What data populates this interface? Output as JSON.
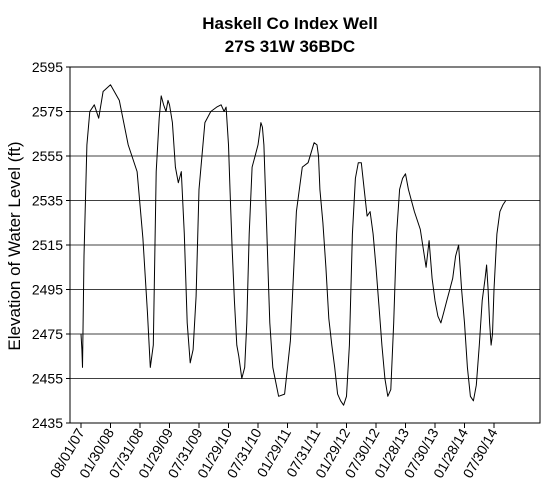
{
  "chart_data": {
    "type": "line",
    "title": "Haskell Co Index Well",
    "subtitle": "27S 31W 36BDC",
    "xlabel": "",
    "ylabel": "Elevation of Water Level (ft)",
    "ylim": [
      2435,
      2595
    ],
    "yticks": [
      2435,
      2455,
      2475,
      2495,
      2515,
      2535,
      2555,
      2575,
      2595
    ],
    "xtick_labels": [
      "08/01/07",
      "01/30/08",
      "07/31/08",
      "01/29/09",
      "07/31/09",
      "01/29/10",
      "07/31/10",
      "01/29/11",
      "07/31/11",
      "01/29/12",
      "07/30/12",
      "01/28/13",
      "07/30/13",
      "01/28/14",
      "07/30/14"
    ],
    "grid": "horizontal",
    "legend": "none",
    "line_color": "#000000",
    "series": [
      {
        "x": [
          0,
          0.03,
          0.05,
          0.1,
          0.2,
          0.3,
          0.45,
          0.6,
          0.75,
          1.0,
          1.3,
          1.6,
          1.9,
          2.1,
          2.25,
          2.35,
          2.45,
          2.55,
          2.65,
          2.72,
          2.8,
          2.88,
          2.95,
          3.0,
          3.1,
          3.2,
          3.3,
          3.4,
          3.5,
          3.6,
          3.7,
          3.8,
          3.9,
          4.0,
          4.2,
          4.4,
          4.6,
          4.75,
          4.85,
          4.92,
          5.0,
          5.05,
          5.12,
          5.2,
          5.28,
          5.35,
          5.45,
          5.55,
          5.62,
          5.7,
          5.8,
          5.9,
          6.0,
          6.05,
          6.1,
          6.15,
          6.2,
          6.25,
          6.3,
          6.35,
          6.4,
          6.5,
          6.7,
          6.9,
          7.1,
          7.3,
          7.5,
          7.7,
          7.9,
          8.0,
          8.05,
          8.1,
          8.2,
          8.3,
          8.4,
          8.5,
          8.6,
          8.7,
          8.8,
          8.9,
          9.0,
          9.1,
          9.2,
          9.3,
          9.4,
          9.5,
          9.6,
          9.7,
          9.8,
          9.9,
          10.0,
          10.1,
          10.2,
          10.3,
          10.4,
          10.5,
          10.6,
          10.7,
          10.8,
          10.9,
          11.0,
          11.1,
          11.3,
          11.5,
          11.7,
          11.8,
          11.9,
          12.0,
          12.1,
          12.2,
          12.3,
          12.4,
          12.5,
          12.6,
          12.7,
          12.8,
          12.9,
          13.0,
          13.1,
          13.2,
          13.3,
          13.4,
          13.5,
          13.6,
          13.7,
          13.75,
          13.8,
          13.85,
          13.9,
          13.95,
          14.0,
          14.1,
          14.2,
          14.3,
          14.4
        ],
        "values": [
          2475,
          2468,
          2460,
          2510,
          2560,
          2575,
          2578,
          2572,
          2584,
          2587,
          2580,
          2560,
          2548,
          2518,
          2485,
          2460,
          2470,
          2548,
          2572,
          2582,
          2578,
          2575,
          2580,
          2578,
          2570,
          2550,
          2543,
          2548,
          2520,
          2480,
          2462,
          2468,
          2492,
          2540,
          2570,
          2575,
          2577,
          2578,
          2575,
          2577,
          2560,
          2540,
          2515,
          2490,
          2470,
          2465,
          2455,
          2460,
          2480,
          2520,
          2550,
          2555,
          2560,
          2565,
          2570,
          2568,
          2560,
          2540,
          2520,
          2500,
          2480,
          2460,
          2447,
          2448,
          2472,
          2530,
          2550,
          2552,
          2561,
          2560,
          2555,
          2540,
          2525,
          2505,
          2482,
          2470,
          2460,
          2448,
          2445,
          2443,
          2447,
          2470,
          2520,
          2545,
          2552,
          2552,
          2540,
          2528,
          2530,
          2520,
          2505,
          2488,
          2470,
          2455,
          2447,
          2450,
          2480,
          2520,
          2540,
          2545,
          2547,
          2540,
          2530,
          2522,
          2505,
          2517,
          2500,
          2490,
          2483,
          2480,
          2485,
          2490,
          2495,
          2500,
          2510,
          2515,
          2495,
          2480,
          2460,
          2447,
          2445,
          2452,
          2470,
          2490,
          2500,
          2506,
          2495,
          2480,
          2470,
          2475,
          2495,
          2520,
          2530,
          2533,
          2535
        ]
      }
    ]
  }
}
